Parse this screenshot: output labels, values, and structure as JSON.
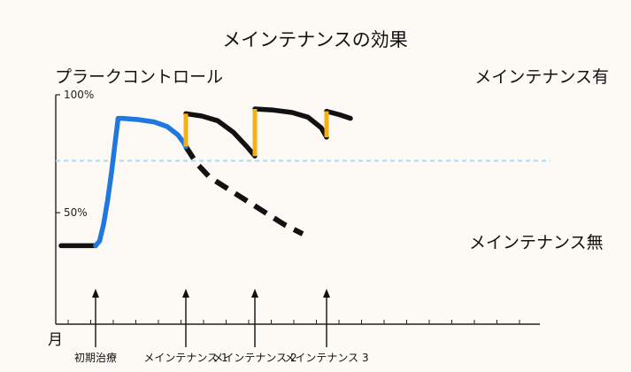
{
  "chart_data": {
    "type": "line",
    "title": "メインテナンスの効果",
    "ylabel": "プラークコントロール",
    "xlabel": "月",
    "ylim": [
      20,
      100
    ],
    "yticks": [
      {
        "value": 100,
        "label": "100%"
      },
      {
        "value": 50,
        "label": "50%"
      }
    ],
    "xlim": [
      0,
      120
    ],
    "reference_line": {
      "value": 72,
      "color": "#a8daf2",
      "style": "dashed"
    },
    "events": [
      {
        "x": 10,
        "label": "初期治療"
      },
      {
        "x": 44,
        "label": "メインテナンス 1"
      },
      {
        "x": 70,
        "label": "メインテナンス 2"
      },
      {
        "x": 97,
        "label": "メインテナンス 3"
      }
    ],
    "series": [
      {
        "name": "メインテナンス有",
        "color": "#111111",
        "style": "solid",
        "points": [
          [
            -3,
            36
          ],
          [
            10,
            36
          ],
          [
            11.5,
            38
          ],
          [
            13,
            45
          ],
          [
            14.5,
            55
          ],
          [
            16,
            67
          ],
          [
            17.5,
            81
          ],
          [
            18.5,
            90
          ],
          [
            20,
            90
          ],
          [
            26,
            89.5
          ],
          [
            32,
            88.5
          ],
          [
            37,
            86.5
          ],
          [
            41,
            83
          ],
          [
            43,
            80
          ],
          [
            44,
            78
          ],
          [
            44,
            92
          ],
          [
            50,
            91
          ],
          [
            56,
            89
          ],
          [
            62,
            84
          ],
          [
            67,
            78
          ],
          [
            70,
            74
          ],
          [
            70,
            94
          ],
          [
            77,
            93.5
          ],
          [
            84,
            92.5
          ],
          [
            90,
            90.5
          ],
          [
            95,
            86
          ],
          [
            97,
            82
          ],
          [
            97,
            93
          ],
          [
            102,
            91.5
          ],
          [
            106,
            90
          ]
        ]
      },
      {
        "name": "メインテナンス無",
        "color": "#111111",
        "style": "dashed",
        "points": [
          [
            44,
            78
          ],
          [
            48,
            71
          ],
          [
            53,
            65
          ],
          [
            60,
            60
          ],
          [
            67,
            55
          ],
          [
            74,
            50
          ],
          [
            81,
            45
          ],
          [
            88,
            41
          ]
        ]
      }
    ],
    "colors": {
      "initial_treatment": "#1f77e0",
      "maintenance_jump": "#f5b016",
      "line": "#111111",
      "background": "#fdfaf6"
    }
  }
}
